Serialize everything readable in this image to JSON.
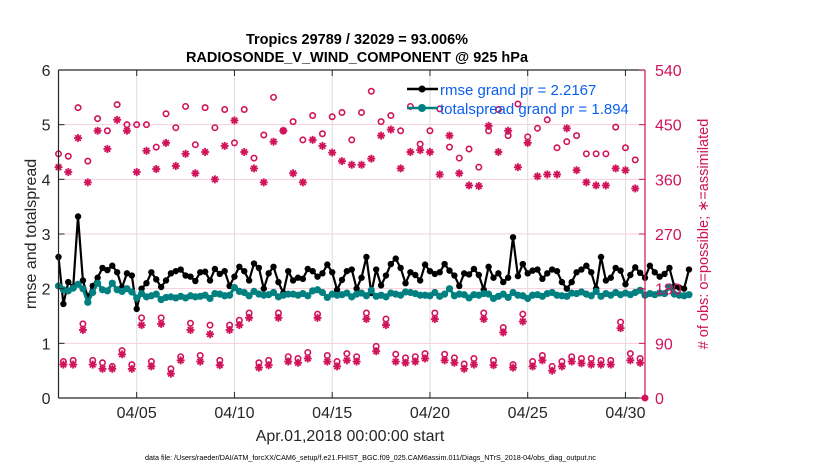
{
  "chart_data": {
    "type": "line",
    "title": [
      "Tropics 29789 / 32029 = 93.006%",
      "RADIOSONDE_V_WIND_COMPONENT @ 925 hPa"
    ],
    "xlabel": "Apr.01,2018 00:00:00 start",
    "ylabel": "rmse and totalspread",
    "ylabel_right": "# of obs: o=possible; ∗=assimilated",
    "footnote": "data file: /Users/raeder/DAI/ATM_forcXX/CAM6_setup/f.e21.FHIST_BGC.f09_025.CAM6assim.011/Diags_NTrS_2018-04/obs_diag_output.nc",
    "x_unit": "day of April 2018",
    "xlim": [
      1,
      31
    ],
    "x_ticks": [
      {
        "value": 5,
        "label": "04/05"
      },
      {
        "value": 10,
        "label": "04/10"
      },
      {
        "value": 15,
        "label": "04/15"
      },
      {
        "value": 20,
        "label": "04/20"
      },
      {
        "value": 25,
        "label": "04/25"
      },
      {
        "value": 30,
        "label": "04/30"
      }
    ],
    "ylim": [
      0,
      6
    ],
    "y_ticks": [
      0,
      1,
      2,
      3,
      4,
      5,
      6
    ],
    "ylim_right": [
      0,
      540
    ],
    "y_ticks_right": [
      0,
      90,
      180,
      270,
      360,
      450,
      540
    ],
    "grid": true,
    "legend_placement": "top-right",
    "legend": [
      {
        "label": "rmse grand pr = 2.2167",
        "color": "#000000"
      },
      {
        "label": "totalspread grand pr = 1.894",
        "color": "#008080"
      }
    ],
    "time_step_days": 0.25,
    "x_start": 1.0,
    "series": [
      {
        "name": "rmse",
        "axis": "left",
        "color": "#000000",
        "values": [
          2.58,
          1.72,
          2.12,
          2.03,
          3.32,
          2.15,
          1.85,
          2.05,
          2.2,
          2.38,
          2.34,
          2.42,
          2.3,
          2.02,
          2.28,
          2.24,
          1.63,
          2.0,
          2.1,
          2.3,
          2.17,
          2.03,
          2.15,
          2.28,
          2.32,
          2.35,
          2.24,
          2.22,
          2.14,
          2.3,
          2.31,
          2.15,
          2.36,
          2.27,
          2.32,
          2.05,
          2.22,
          2.4,
          2.32,
          2.15,
          2.46,
          2.38,
          2.0,
          2.28,
          2.4,
          2.12,
          1.92,
          2.32,
          2.15,
          2.2,
          2.18,
          2.36,
          2.32,
          2.22,
          2.28,
          2.44,
          2.3,
          1.98,
          2.16,
          2.32,
          2.35,
          2.0,
          2.2,
          2.58,
          1.92,
          2.35,
          2.06,
          2.24,
          2.45,
          2.55,
          2.38,
          2.1,
          2.3,
          2.25,
          2.15,
          2.44,
          2.32,
          2.27,
          2.3,
          2.45,
          2.33,
          2.24,
          2.05,
          2.28,
          2.26,
          2.36,
          2.25,
          1.98,
          2.4,
          2.2,
          2.28,
          2.12,
          2.2,
          2.94,
          2.23,
          2.45,
          2.28,
          2.33,
          2.35,
          2.18,
          2.28,
          2.35,
          2.32,
          2.12,
          2.0,
          2.12,
          2.3,
          2.35,
          2.42,
          2.3,
          2.0,
          2.58,
          2.15,
          2.2,
          2.38,
          2.33,
          2.08,
          2.25,
          2.39,
          2.29,
          2.2,
          2.42,
          2.3,
          2.22,
          2.27,
          2.38,
          2.04,
          2.02,
          2.0,
          2.35
        ]
      },
      {
        "name": "totalspread",
        "axis": "left",
        "color": "#008080",
        "values": [
          2.05,
          1.98,
          1.96,
          2.01,
          2.08,
          2.0,
          1.75,
          1.93,
          2.1,
          1.98,
          1.96,
          2.1,
          1.98,
          1.95,
          2.0,
          1.94,
          1.83,
          1.91,
          1.85,
          1.87,
          1.9,
          1.8,
          1.84,
          1.85,
          1.83,
          1.86,
          1.83,
          1.87,
          1.85,
          1.86,
          1.88,
          1.82,
          1.91,
          1.9,
          1.87,
          1.88,
          2.02,
          1.95,
          1.93,
          1.87,
          1.95,
          1.9,
          1.88,
          1.89,
          1.93,
          1.85,
          1.88,
          1.9,
          1.9,
          1.88,
          1.91,
          1.87,
          1.96,
          1.98,
          1.93,
          1.84,
          1.9,
          1.88,
          1.89,
          1.92,
          1.85,
          1.9,
          1.92,
          1.87,
          1.97,
          1.86,
          1.88,
          1.85,
          1.92,
          1.9,
          1.88,
          1.94,
          1.93,
          1.91,
          1.88,
          1.88,
          1.87,
          1.93,
          1.86,
          1.9,
          2.0,
          1.87,
          1.9,
          1.89,
          1.83,
          1.89,
          1.88,
          1.91,
          1.9,
          1.82,
          1.86,
          1.9,
          1.84,
          1.93,
          1.88,
          1.87,
          1.82,
          1.88,
          1.89,
          1.86,
          1.91,
          1.93,
          1.88,
          1.87,
          1.86,
          1.92,
          1.91,
          1.94,
          1.9,
          1.87,
          1.95,
          1.86,
          1.91,
          1.88,
          1.93,
          1.89,
          1.92,
          1.89,
          1.93,
          1.97,
          1.88,
          1.91,
          1.89,
          1.92,
          1.91,
          2.03,
          1.9,
          1.88,
          1.87,
          1.89
        ]
      },
      {
        "name": "obs possible (daily 00Z/12Z)",
        "axis": "right",
        "color": "#d0135a",
        "marker": "circle",
        "x": [
          1.0,
          1.5,
          2.0,
          2.5,
          3.0,
          3.5,
          4.0,
          4.5,
          5.0,
          5.5,
          6.0,
          6.5,
          7.0,
          7.5,
          8.0,
          8.5,
          9.0,
          9.5,
          10.0,
          10.5,
          11.0,
          11.5,
          12.0,
          12.5,
          13.0,
          13.5,
          14.0,
          14.5,
          15.0,
          15.5,
          16.0,
          16.5,
          17.0,
          17.5,
          18.0,
          18.5,
          19.0,
          19.5,
          20.0,
          20.5,
          21.0,
          21.5,
          22.0,
          22.5,
          23.0,
          23.5,
          24.0,
          24.5,
          25.0,
          25.5,
          26.0,
          26.5,
          27.0,
          27.5,
          28.0,
          28.5,
          29.0,
          29.5,
          30.0,
          30.5
        ],
        "values": [
          402,
          398,
          478,
          390,
          460,
          440,
          483,
          450,
          450,
          450,
          413,
          468,
          445,
          480,
          417,
          478,
          445,
          475,
          420,
          475,
          395,
          433,
          495,
          440,
          455,
          425,
          465,
          435,
          463,
          470,
          425,
          470,
          505,
          455,
          465,
          440,
          480,
          418,
          440,
          476,
          413,
          395,
          410,
          380,
          440,
          475,
          432,
          484,
          430,
          444,
          458,
          412,
          422,
          432,
          402,
          402,
          402,
          446,
          412,
          392
        ]
      },
      {
        "name": "obs assimilated (daily 00Z/12Z)",
        "axis": "right",
        "color": "#d0135a",
        "marker": "asterisk",
        "x": [
          1.0,
          1.5,
          2.0,
          2.5,
          3.0,
          3.5,
          4.0,
          4.5,
          5.0,
          5.5,
          6.0,
          6.5,
          7.0,
          7.5,
          8.0,
          8.5,
          9.0,
          9.5,
          10.0,
          10.5,
          11.0,
          11.5,
          12.0,
          12.5,
          13.0,
          13.5,
          14.0,
          14.5,
          15.0,
          15.5,
          16.0,
          16.5,
          17.0,
          17.5,
          18.0,
          18.5,
          19.0,
          19.5,
          20.0,
          20.5,
          21.0,
          21.5,
          22.0,
          22.5,
          23.0,
          23.5,
          24.0,
          24.5,
          25.0,
          25.5,
          26.0,
          26.5,
          27.0,
          27.5,
          28.0,
          28.5,
          29.0,
          29.5,
          30.0,
          30.5
        ],
        "values": [
          380,
          372,
          428,
          355,
          440,
          410,
          458,
          440,
          372,
          407,
          377,
          420,
          382,
          402,
          370,
          405,
          360,
          415,
          457,
          405,
          378,
          355,
          422,
          440,
          370,
          355,
          425,
          415,
          404,
          390,
          384,
          384,
          394,
          432,
          442,
          378,
          405,
          408,
          405,
          368,
          432,
          370,
          350,
          349,
          448,
          405,
          440,
          380,
          420,
          365,
          368,
          368,
          444,
          375,
          355,
          350,
          350,
          378,
          375,
          345
        ]
      },
      {
        "name": "obs possible (daily 06Z/18Z)",
        "axis": "right",
        "color": "#d0135a",
        "marker": "circle",
        "x": [
          1.25,
          1.75,
          2.25,
          2.75,
          3.25,
          3.75,
          4.25,
          4.75,
          5.25,
          5.75,
          6.25,
          6.75,
          7.25,
          7.75,
          8.25,
          8.75,
          9.25,
          9.75,
          10.25,
          10.75,
          11.25,
          11.75,
          12.25,
          12.75,
          13.25,
          13.75,
          14.25,
          14.75,
          15.25,
          15.75,
          16.25,
          16.75,
          17.25,
          17.75,
          18.25,
          18.75,
          19.25,
          19.75,
          20.25,
          20.75,
          21.25,
          21.75,
          22.25,
          22.75,
          23.25,
          23.75,
          24.25,
          24.75,
          25.25,
          25.75,
          26.25,
          26.75,
          27.25,
          27.75,
          28.25,
          28.75,
          29.25,
          29.75,
          30.25,
          30.75
        ],
        "values": [
          60,
          62,
          122,
          62,
          58,
          52,
          78,
          55,
          132,
          60,
          132,
          48,
          68,
          123,
          70,
          120,
          62,
          120,
          128,
          140,
          58,
          62,
          140,
          68,
          65,
          75,
          138,
          70,
          60,
          73,
          68,
          140,
          85,
          130,
          72,
          66,
          68,
          73,
          140,
          72,
          66,
          56,
          65,
          140,
          62,
          116,
          55,
          138,
          60,
          70,
          52,
          60,
          68,
          65,
          65,
          62,
          62,
          125,
          73,
          65
        ]
      },
      {
        "name": "obs assimilated (daily 06Z/18Z)",
        "axis": "right",
        "color": "#d0135a",
        "marker": "asterisk",
        "x": [
          1.25,
          1.75,
          2.25,
          2.75,
          3.25,
          3.75,
          4.25,
          4.75,
          5.25,
          5.75,
          6.25,
          6.75,
          7.25,
          7.75,
          8.25,
          8.75,
          9.25,
          9.75,
          10.25,
          10.75,
          11.25,
          11.75,
          12.25,
          12.75,
          13.25,
          13.75,
          14.25,
          14.75,
          15.25,
          15.75,
          16.25,
          16.75,
          17.25,
          17.75,
          18.25,
          18.75,
          19.25,
          19.75,
          20.25,
          20.75,
          21.25,
          21.75,
          22.25,
          22.75,
          23.25,
          23.75,
          24.25,
          24.75,
          25.25,
          25.75,
          26.25,
          26.75,
          27.25,
          27.75,
          28.25,
          28.75,
          29.25,
          29.75,
          30.25,
          30.75
        ],
        "values": [
          55,
          55,
          112,
          55,
          48,
          48,
          72,
          48,
          120,
          52,
          122,
          40,
          62,
          112,
          60,
          105,
          54,
          112,
          120,
          132,
          50,
          54,
          132,
          60,
          58,
          65,
          132,
          60,
          52,
          62,
          60,
          130,
          77,
          120,
          60,
          58,
          60,
          65,
          130,
          62,
          58,
          48,
          55,
          130,
          54,
          108,
          50,
          126,
          52,
          62,
          45,
          52,
          60,
          57,
          55,
          55,
          55,
          115,
          62,
          58
        ]
      }
    ]
  }
}
